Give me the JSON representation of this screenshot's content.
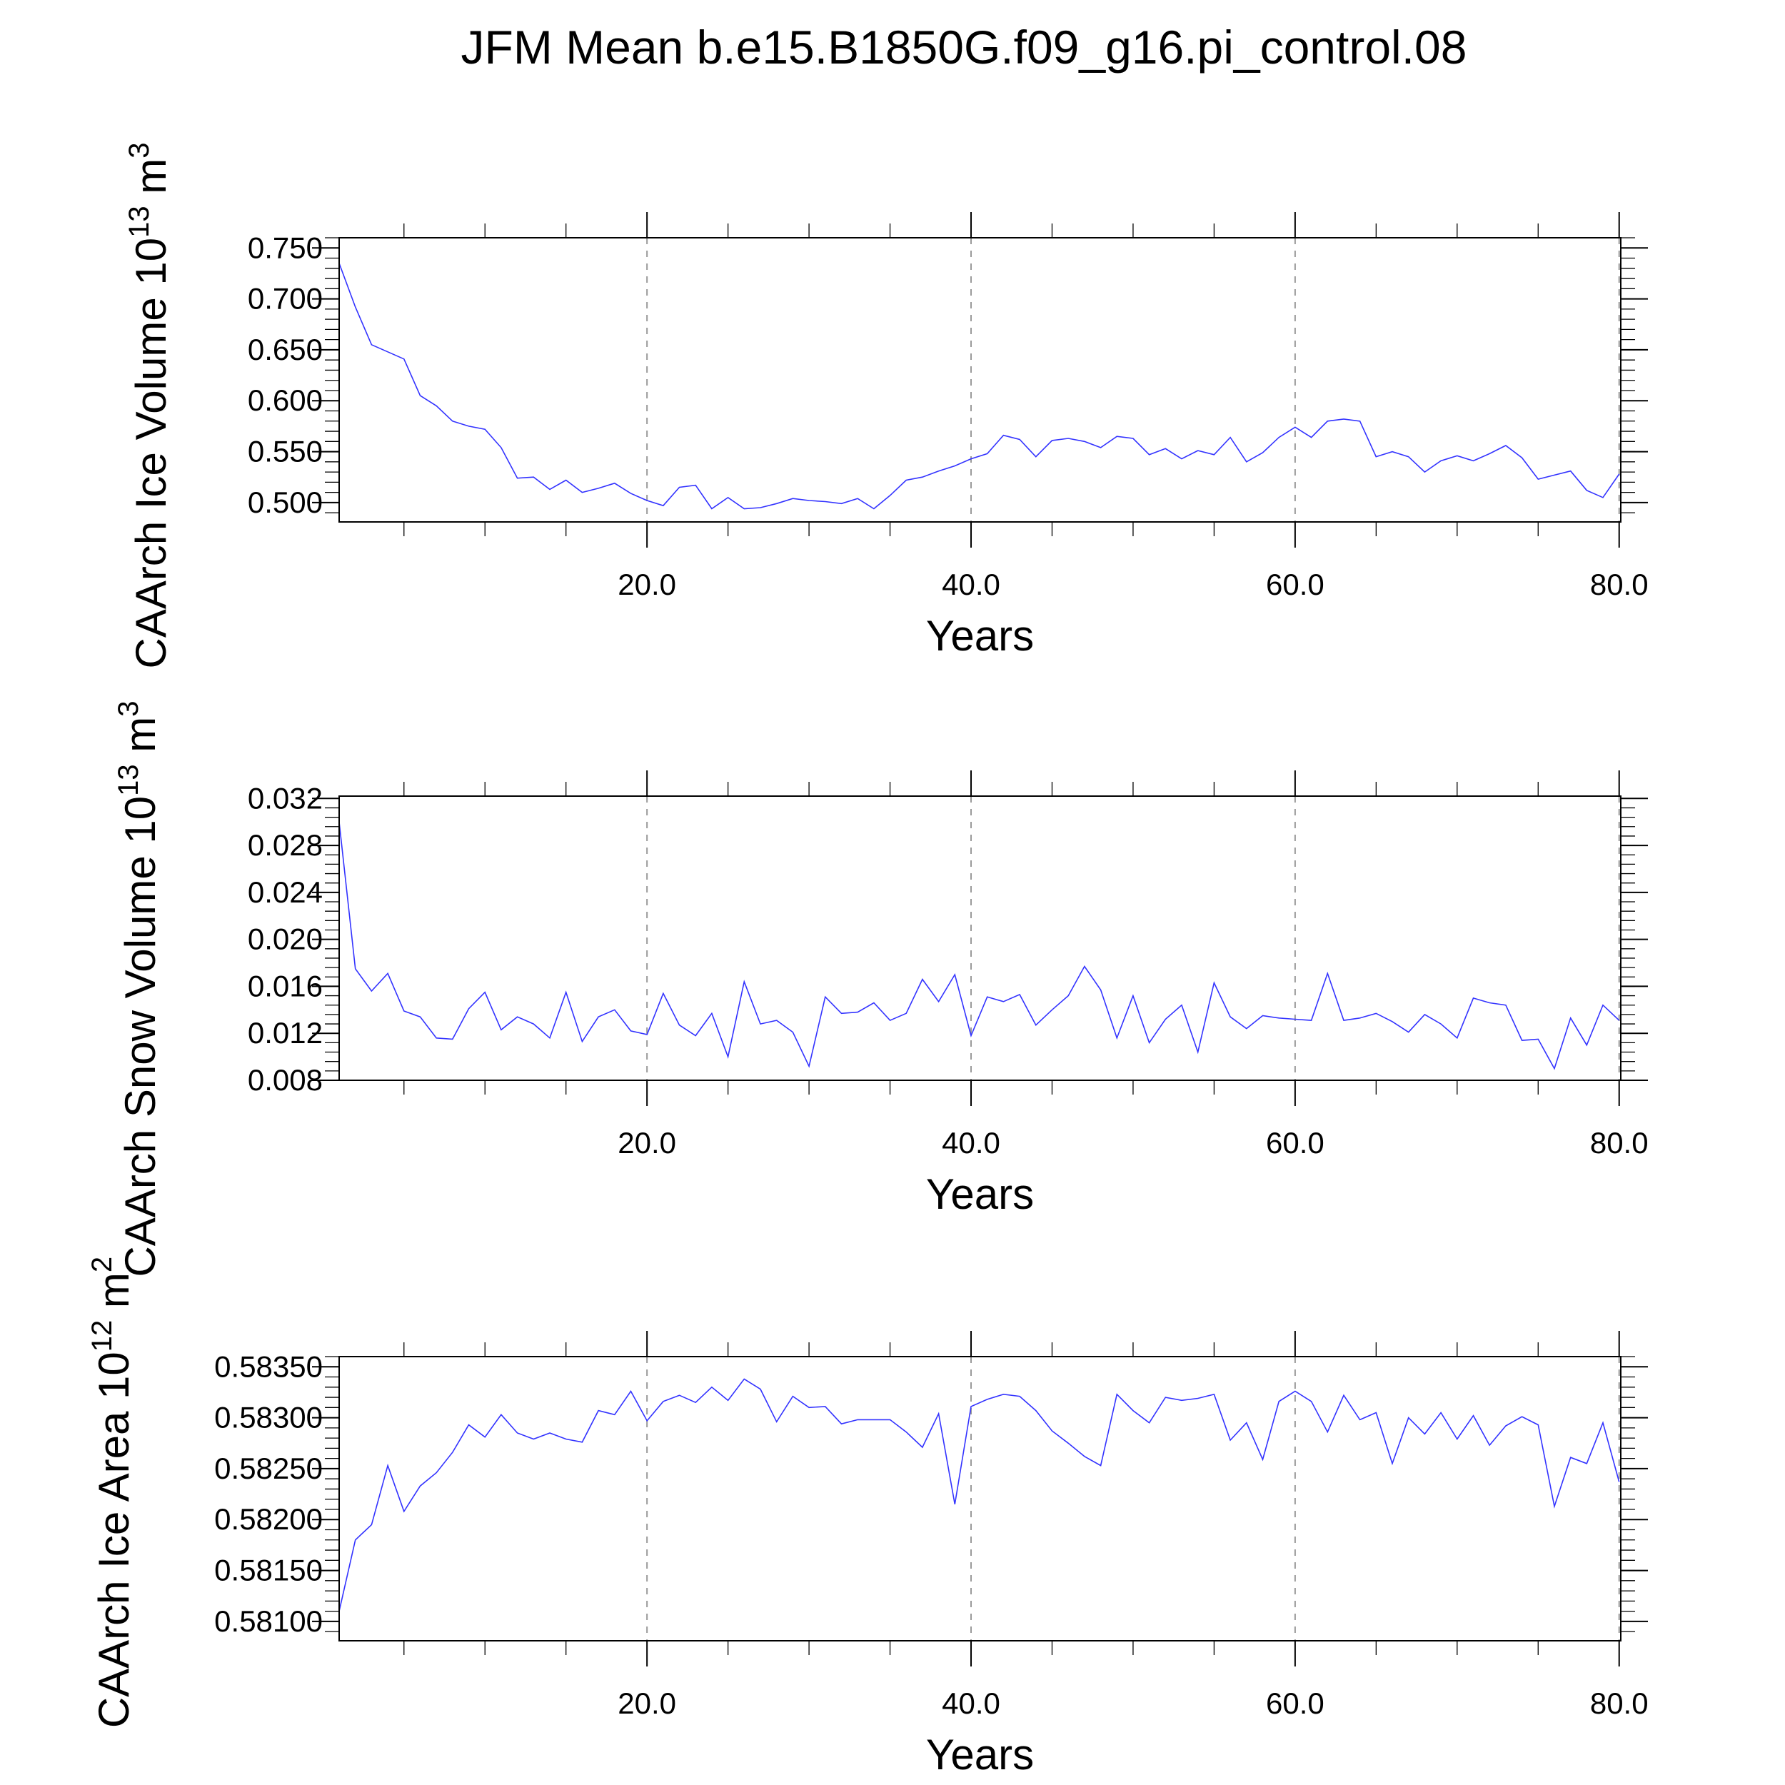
{
  "chart_data": {
    "title": "JFM Mean b.e15.B1850G.f09_g16.pi_control.08",
    "type": "line",
    "series_color": "#3333ff",
    "panels": [
      {
        "name": "ice-volume",
        "ylabel": "CAArch Ice Volume 10",
        "ylabel_sup": "13",
        "ylabel_unit": "m",
        "ylabel_unit_sup": "3",
        "xlabel": "Years",
        "xlim": [
          1,
          80.1
        ],
        "ylim": [
          0.481,
          0.76
        ],
        "yticks": [
          0.5,
          0.55,
          0.6,
          0.65,
          0.7,
          0.75
        ],
        "ytick_labels": [
          "0.500",
          "0.550",
          "0.600",
          "0.650",
          "0.700",
          "0.750"
        ],
        "yminor_step": 0.01,
        "xticks": [
          20,
          40,
          60,
          80
        ],
        "xtick_labels": [
          "20.0",
          "40.0",
          "60.0",
          "80.0"
        ],
        "x": [
          1,
          2,
          3,
          4,
          5,
          6,
          7,
          8,
          9,
          10,
          11,
          12,
          13,
          14,
          15,
          16,
          17,
          18,
          19,
          20,
          21,
          22,
          23,
          24,
          25,
          26,
          27,
          28,
          29,
          30,
          31,
          32,
          33,
          34,
          35,
          36,
          37,
          38,
          39,
          40,
          41,
          42,
          43,
          44,
          45,
          46,
          47,
          48,
          49,
          50,
          51,
          52,
          53,
          54,
          55,
          56,
          57,
          58,
          59,
          60,
          61,
          62,
          63,
          64,
          65,
          66,
          67,
          68,
          69,
          70,
          71,
          72,
          73,
          74,
          75,
          76,
          77,
          78,
          79,
          80
        ],
        "values": [
          0.735,
          0.692,
          0.655,
          0.648,
          0.641,
          0.605,
          0.595,
          0.58,
          0.575,
          0.572,
          0.554,
          0.524,
          0.525,
          0.513,
          0.522,
          0.51,
          0.514,
          0.519,
          0.509,
          0.502,
          0.497,
          0.515,
          0.517,
          0.494,
          0.505,
          0.494,
          0.495,
          0.499,
          0.504,
          0.502,
          0.501,
          0.499,
          0.504,
          0.494,
          0.507,
          0.522,
          0.525,
          0.531,
          0.536,
          0.543,
          0.548,
          0.566,
          0.562,
          0.545,
          0.561,
          0.563,
          0.56,
          0.554,
          0.565,
          0.563,
          0.547,
          0.553,
          0.543,
          0.551,
          0.547,
          0.564,
          0.54,
          0.549,
          0.564,
          0.574,
          0.564,
          0.58,
          0.582,
          0.58,
          0.545,
          0.55,
          0.545,
          0.53,
          0.541,
          0.546,
          0.541,
          0.548,
          0.556,
          0.544,
          0.523,
          0.527,
          0.531,
          0.512,
          0.505,
          0.528
        ]
      },
      {
        "name": "snow-volume",
        "ylabel": "CAArch Snow Volume 10",
        "ylabel_sup": "13",
        "ylabel_unit": "m",
        "ylabel_unit_sup": "3",
        "xlabel": "Years",
        "xlim": [
          1,
          80.1
        ],
        "ylim": [
          0.008,
          0.0322
        ],
        "yticks": [
          0.008,
          0.012,
          0.016,
          0.02,
          0.024,
          0.028,
          0.032
        ],
        "ytick_labels": [
          "0.008",
          "0.012",
          "0.016",
          "0.020",
          "0.024",
          "0.028",
          "0.032"
        ],
        "yminor_step": 0.0008,
        "xticks": [
          20,
          40,
          60,
          80
        ],
        "xtick_labels": [
          "20.0",
          "40.0",
          "60.0",
          "80.0"
        ],
        "x": [
          1,
          2,
          3,
          4,
          5,
          6,
          7,
          8,
          9,
          10,
          11,
          12,
          13,
          14,
          15,
          16,
          17,
          18,
          19,
          20,
          21,
          22,
          23,
          24,
          25,
          26,
          27,
          28,
          29,
          30,
          31,
          32,
          33,
          34,
          35,
          36,
          37,
          38,
          39,
          40,
          41,
          42,
          43,
          44,
          45,
          46,
          47,
          48,
          49,
          50,
          51,
          52,
          53,
          54,
          55,
          56,
          57,
          58,
          59,
          60,
          61,
          62,
          63,
          64,
          65,
          66,
          67,
          68,
          69,
          70,
          71,
          72,
          73,
          74,
          75,
          76,
          77,
          78,
          79,
          80
        ],
        "values": [
          0.03,
          0.0175,
          0.0156,
          0.0171,
          0.0139,
          0.0134,
          0.0116,
          0.0115,
          0.0141,
          0.0155,
          0.0123,
          0.0134,
          0.0128,
          0.0116,
          0.0155,
          0.0113,
          0.0134,
          0.014,
          0.0122,
          0.0119,
          0.0154,
          0.0127,
          0.0118,
          0.0137,
          0.01,
          0.0164,
          0.0128,
          0.0131,
          0.0121,
          0.0092,
          0.0151,
          0.0137,
          0.0138,
          0.0146,
          0.0131,
          0.0137,
          0.0166,
          0.0147,
          0.017,
          0.0118,
          0.0151,
          0.0147,
          0.0153,
          0.0127,
          0.014,
          0.0152,
          0.0177,
          0.0157,
          0.0116,
          0.0152,
          0.0112,
          0.0132,
          0.0144,
          0.0104,
          0.0163,
          0.0134,
          0.0124,
          0.0135,
          0.0133,
          0.0132,
          0.0131,
          0.0171,
          0.0131,
          0.0133,
          0.0137,
          0.013,
          0.0121,
          0.0136,
          0.0128,
          0.0116,
          0.015,
          0.0146,
          0.0144,
          0.0114,
          0.0115,
          0.009,
          0.0133,
          0.011,
          0.0144,
          0.0131
        ]
      },
      {
        "name": "ice-area",
        "ylabel": "CAArch Ice Area 10",
        "ylabel_sup": "12",
        "ylabel_unit": "m",
        "ylabel_unit_sup": "2",
        "xlabel": "Years",
        "xlim": [
          1,
          80.1
        ],
        "ylim": [
          0.58081,
          0.5836
        ],
        "yticks": [
          0.581,
          0.5815,
          0.582,
          0.5825,
          0.583,
          0.5835
        ],
        "ytick_labels": [
          "0.58100",
          "0.58150",
          "0.58200",
          "0.58250",
          "0.58300",
          "0.58350"
        ],
        "yminor_step": 0.0001,
        "xticks": [
          20,
          40,
          60,
          80
        ],
        "xtick_labels": [
          "20.0",
          "40.0",
          "60.0",
          "80.0"
        ],
        "x": [
          1,
          2,
          3,
          4,
          5,
          6,
          7,
          8,
          9,
          10,
          11,
          12,
          13,
          14,
          15,
          16,
          17,
          18,
          19,
          20,
          21,
          22,
          23,
          24,
          25,
          26,
          27,
          28,
          29,
          30,
          31,
          32,
          33,
          34,
          35,
          36,
          37,
          38,
          39,
          40,
          41,
          42,
          43,
          44,
          45,
          46,
          47,
          48,
          49,
          50,
          51,
          52,
          53,
          54,
          55,
          56,
          57,
          58,
          59,
          60,
          61,
          62,
          63,
          64,
          65,
          66,
          67,
          68,
          69,
          70,
          71,
          72,
          73,
          74,
          75,
          76,
          77,
          78,
          79,
          80
        ],
        "values": [
          0.5811,
          0.5818,
          0.58195,
          0.58253,
          0.58208,
          0.58233,
          0.58246,
          0.58266,
          0.58293,
          0.58281,
          0.58303,
          0.58285,
          0.58279,
          0.58285,
          0.58279,
          0.58276,
          0.58307,
          0.58303,
          0.58326,
          0.58297,
          0.58316,
          0.58322,
          0.58315,
          0.5833,
          0.58317,
          0.58338,
          0.58328,
          0.58296,
          0.58321,
          0.5831,
          0.58311,
          0.58294,
          0.58298,
          0.58298,
          0.58298,
          0.58286,
          0.58271,
          0.58304,
          0.58215,
          0.58311,
          0.58318,
          0.58323,
          0.58321,
          0.58307,
          0.58287,
          0.58275,
          0.58262,
          0.58253,
          0.58323,
          0.58307,
          0.58295,
          0.5832,
          0.58317,
          0.58319,
          0.58323,
          0.58278,
          0.58295,
          0.58259,
          0.58316,
          0.58326,
          0.58316,
          0.58286,
          0.58322,
          0.58298,
          0.58305,
          0.58255,
          0.583,
          0.58284,
          0.58305,
          0.58279,
          0.58302,
          0.58273,
          0.58292,
          0.58301,
          0.58293,
          0.58213,
          0.58261,
          0.58255,
          0.58295,
          0.58237
        ]
      }
    ]
  }
}
